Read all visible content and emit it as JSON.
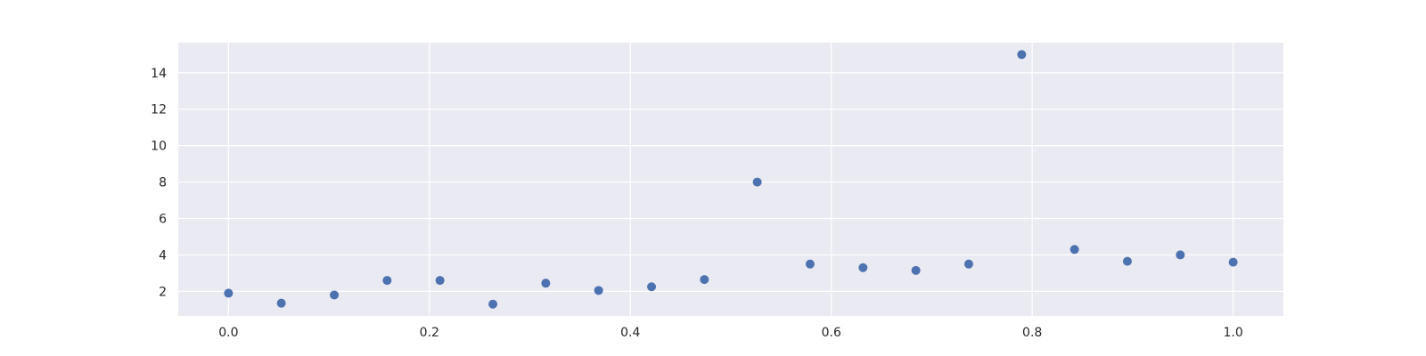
{
  "chart_data": {
    "type": "scatter",
    "title": "",
    "xlabel": "",
    "ylabel": "",
    "xlim": [
      -0.05,
      1.05
    ],
    "ylim": [
      0.65,
      15.65
    ],
    "x_ticks": [
      0.0,
      0.2,
      0.4,
      0.6,
      0.8,
      1.0
    ],
    "x_tick_labels": [
      "0.0",
      "0.2",
      "0.4",
      "0.6",
      "0.8",
      "1.0"
    ],
    "y_ticks": [
      2,
      4,
      6,
      8,
      10,
      12,
      14
    ],
    "y_tick_labels": [
      "2",
      "4",
      "6",
      "8",
      "10",
      "12",
      "14"
    ],
    "grid": true,
    "legend": "none",
    "background_color": "#eaeaf2",
    "grid_color": "#ffffff",
    "marker_color": "#4c72b0",
    "series": [
      {
        "x": [
          0.0,
          0.0526,
          0.1053,
          0.1579,
          0.2105,
          0.2632,
          0.3158,
          0.3684,
          0.4211,
          0.4737,
          0.5263,
          0.5789,
          0.6316,
          0.6842,
          0.7368,
          0.7895,
          0.8421,
          0.8947,
          0.9474,
          1.0
        ],
        "y": [
          1.9,
          1.35,
          1.8,
          2.6,
          2.6,
          1.3,
          2.45,
          2.05,
          2.25,
          2.65,
          8.0,
          3.5,
          3.3,
          3.15,
          3.5,
          15.0,
          4.3,
          3.65,
          4.0,
          3.6
        ]
      }
    ]
  }
}
